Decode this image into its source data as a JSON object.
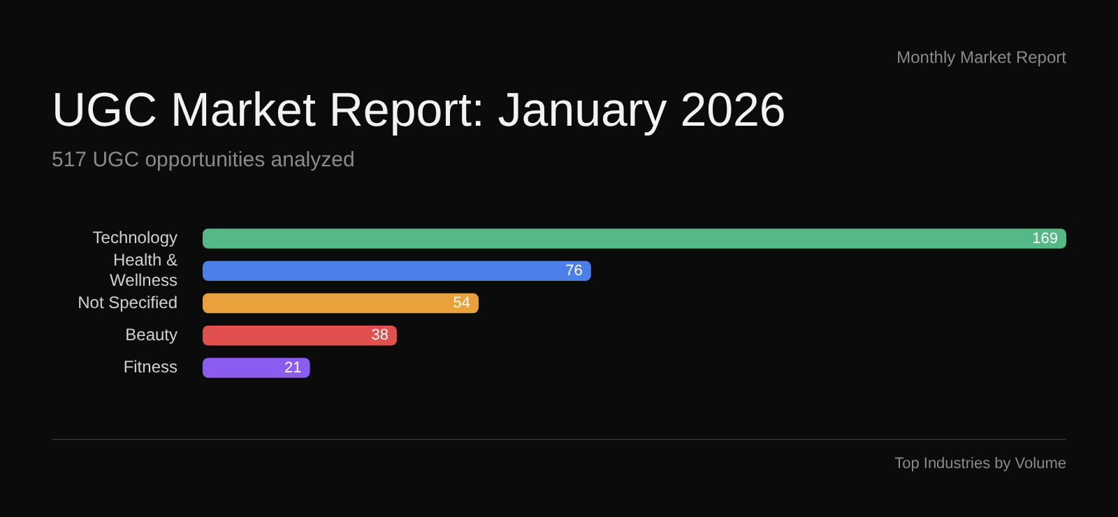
{
  "chart_data": {
    "type": "bar",
    "orientation": "horizontal",
    "title": "UGC Market Report: January 2026",
    "subtitle": "517 UGC opportunities analyzed",
    "categories": [
      "Technology",
      "Health & Wellness",
      "Not Specified",
      "Beauty",
      "Fitness"
    ],
    "values": [
      169,
      76,
      54,
      38,
      21
    ],
    "colors": [
      "#56b887",
      "#4c7fe8",
      "#e9a23b",
      "#e0504d",
      "#8b5cf0"
    ],
    "data_labels": true,
    "tick_labels": "y",
    "grid": false,
    "legend": false,
    "annotations": [
      "Monthly Market Report",
      "Top Industries by Volume"
    ]
  }
}
